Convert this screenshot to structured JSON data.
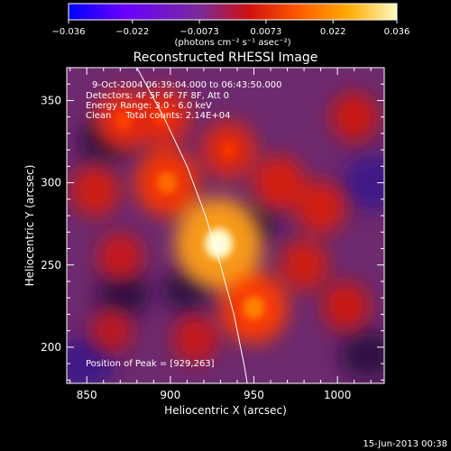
{
  "chart_data": {
    "type": "heatmap",
    "title": "Reconstructed RHESSI Image",
    "xlabel": "Heliocentric X (arcsec)",
    "ylabel": "Heliocentric Y (arcsec)",
    "xlim": [
      838,
      1028
    ],
    "ylim": [
      178,
      370
    ],
    "x_ticks": [
      850,
      900,
      950,
      1000
    ],
    "y_ticks": [
      200,
      250,
      300,
      350
    ],
    "colorbar": {
      "range": [
        -0.036,
        0.036
      ],
      "ticks": [
        -0.036,
        -0.022,
        -0.0073,
        0.0073,
        0.022,
        0.036
      ],
      "tick_labels": [
        "−0.036",
        "−0.022",
        "−0.0073",
        "0.0073",
        "0.022",
        "0.036"
      ],
      "units": "(photons cm⁻² s⁻¹ asec⁻²)",
      "colors": [
        "#0000ff",
        "#6a00ff",
        "#7a2a9a",
        "#d01010",
        "#ff5a00",
        "#ffaa00",
        "#fff8c0"
      ]
    },
    "annotations": {
      "time_range": "9-Oct-2004 06:39:04.000 to 06:43:50.000",
      "detectors": "Detectors: 4F 5F 6F 7F 8F, Att 0",
      "energy": "Energy Range: 3.0 - 6.0 keV",
      "method_counts": "Clean     Total counts: 2.14E+04",
      "peak": "Position of Peak = [929,263]"
    },
    "peak": {
      "x": 929,
      "y": 263
    },
    "sources": [
      {
        "x": 929,
        "y": 263,
        "intensity": 0.036
      },
      {
        "x": 950,
        "y": 224,
        "intensity": 0.024
      },
      {
        "x": 898,
        "y": 300,
        "intensity": 0.022
      },
      {
        "x": 872,
        "y": 338,
        "intensity": 0.018
      },
      {
        "x": 895,
        "y": 340,
        "intensity": 0.017
      },
      {
        "x": 935,
        "y": 320,
        "intensity": 0.016
      },
      {
        "x": 965,
        "y": 300,
        "intensity": 0.014
      },
      {
        "x": 990,
        "y": 285,
        "intensity": 0.013
      },
      {
        "x": 1010,
        "y": 340,
        "intensity": 0.011
      },
      {
        "x": 980,
        "y": 250,
        "intensity": 0.012
      },
      {
        "x": 1005,
        "y": 225,
        "intensity": 0.011
      },
      {
        "x": 870,
        "y": 255,
        "intensity": 0.01
      },
      {
        "x": 855,
        "y": 295,
        "intensity": 0.012
      },
      {
        "x": 915,
        "y": 205,
        "intensity": 0.01
      },
      {
        "x": 865,
        "y": 210,
        "intensity": 0.008
      }
    ],
    "negative_regions": [
      {
        "x": 1022,
        "y": 300,
        "intensity": -0.02
      },
      {
        "x": 848,
        "y": 190,
        "intensity": -0.018
      },
      {
        "x": 872,
        "y": 232,
        "intensity": -0.012
      },
      {
        "x": 860,
        "y": 325,
        "intensity": -0.01
      },
      {
        "x": 910,
        "y": 235,
        "intensity": -0.01
      },
      {
        "x": 950,
        "y": 275,
        "intensity": -0.008
      },
      {
        "x": 1018,
        "y": 195,
        "intensity": -0.014
      }
    ],
    "limb": [
      {
        "x": 880,
        "y": 370
      },
      {
        "x": 896,
        "y": 340
      },
      {
        "x": 910,
        "y": 310
      },
      {
        "x": 921,
        "y": 280
      },
      {
        "x": 930,
        "y": 250
      },
      {
        "x": 938,
        "y": 220
      },
      {
        "x": 944,
        "y": 190
      },
      {
        "x": 946,
        "y": 178
      }
    ]
  },
  "footer": {
    "date": "15-Jun-2013 00:38"
  }
}
